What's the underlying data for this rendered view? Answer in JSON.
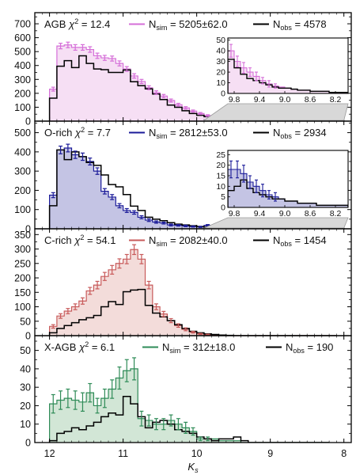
{
  "xlabel": "K",
  "xlabel_sub": "s",
  "x_ticks": [
    12,
    11,
    10,
    9,
    8
  ],
  "x_lim": [
    12.2,
    7.9
  ],
  "chart_data": [
    {
      "type": "histogram",
      "panel": "AGB",
      "label": "AGB",
      "chi2": "12.4",
      "sim_label": "5205±62.0",
      "obs_label": "4578",
      "color": "#d56ed8",
      "fill": "#f6dff4",
      "ylim": [
        0,
        780
      ],
      "yticks": [
        0,
        100,
        200,
        300,
        400,
        500,
        600,
        700
      ],
      "bin_edges": [
        12.0,
        11.9,
        11.8,
        11.7,
        11.6,
        11.5,
        11.4,
        11.3,
        11.2,
        11.1,
        11.0,
        10.9,
        10.8,
        10.7,
        10.6,
        10.5,
        10.4,
        10.3,
        10.2,
        10.1,
        10.0,
        9.9,
        9.8,
        9.7,
        9.6,
        9.5,
        9.4,
        9.3,
        9.2,
        9.1,
        9.0,
        8.9,
        8.8,
        8.7,
        8.6,
        8.5,
        8.4,
        8.3,
        8.2,
        8.1,
        8.0
      ],
      "sim": [
        230,
        540,
        548,
        530,
        530,
        515,
        470,
        455,
        450,
        415,
        375,
        325,
        285,
        240,
        205,
        180,
        148,
        118,
        95,
        72,
        55,
        40,
        30,
        24,
        20,
        16,
        12,
        9,
        7,
        6,
        5,
        4,
        3,
        3,
        2,
        2,
        2,
        1,
        1,
        1
      ],
      "sim_err": [
        14,
        20,
        20,
        20,
        20,
        20,
        19,
        18,
        18,
        18,
        17,
        16,
        15,
        14,
        13,
        12,
        11,
        10,
        9,
        8,
        7,
        6,
        5,
        5,
        4,
        4,
        3,
        3,
        2,
        2,
        2,
        2,
        1,
        1,
        1,
        1,
        1,
        1,
        1,
        1
      ],
      "obs": [
        165,
        395,
        435,
        385,
        470,
        415,
        375,
        370,
        350,
        350,
        368,
        283,
        255,
        232,
        195,
        155,
        115,
        100,
        75,
        55,
        42,
        32,
        24,
        18,
        14,
        12,
        10,
        8,
        6,
        5,
        5,
        4,
        3,
        3,
        2,
        2,
        2,
        1,
        1,
        1
      ],
      "inset": {
        "ylim": [
          0,
          52
        ],
        "yticks": [
          0,
          10,
          20,
          30,
          40,
          50
        ],
        "xlim": [
          9.9,
          8.0
        ],
        "xticks": [
          9.8,
          9.4,
          9.0,
          8.6,
          8.2
        ],
        "x_ticklabels": [
          "9.8",
          "9.4",
          "9.0",
          "8.6",
          "8.2"
        ]
      }
    },
    {
      "type": "histogram",
      "panel": "O-rich",
      "label": "O-rich",
      "chi2": "7.7",
      "sim_label": "2812±53.0",
      "obs_label": "2934",
      "color": "#1b1b99",
      "fill": "#c4c4e4",
      "ylim": [
        0,
        560
      ],
      "yticks": [
        0,
        100,
        200,
        300,
        400,
        500
      ],
      "bin_edges": [
        12.0,
        11.9,
        11.8,
        11.7,
        11.6,
        11.5,
        11.4,
        11.3,
        11.2,
        11.1,
        11.0,
        10.9,
        10.8,
        10.7,
        10.6,
        10.5,
        10.4,
        10.3,
        10.2,
        10.1,
        10.0,
        9.9,
        9.8,
        9.7,
        9.6,
        9.5,
        9.4,
        9.3,
        9.2,
        9.1,
        9.0,
        8.9,
        8.8,
        8.7,
        8.6,
        8.5,
        8.4,
        8.3,
        8.2,
        8.1,
        8.0
      ],
      "sim": [
        175,
        410,
        420,
        385,
        375,
        350,
        300,
        195,
        165,
        120,
        95,
        85,
        60,
        45,
        35,
        30,
        20,
        18,
        15,
        12,
        10,
        18,
        18,
        16,
        12,
        10,
        8,
        6,
        5,
        4,
        3,
        3,
        2,
        2,
        2,
        1,
        1,
        1,
        1,
        1
      ],
      "sim_err": [
        13,
        20,
        20,
        19,
        19,
        18,
        17,
        14,
        13,
        11,
        10,
        9,
        8,
        7,
        6,
        5,
        5,
        4,
        4,
        3,
        3,
        4,
        4,
        4,
        3,
        3,
        3,
        2,
        2,
        2,
        2,
        2,
        1,
        1,
        1,
        1,
        1,
        1,
        1,
        1
      ],
      "obs": [
        120,
        410,
        360,
        400,
        375,
        345,
        330,
        280,
        230,
        218,
        178,
        118,
        95,
        60,
        50,
        42,
        32,
        24,
        20,
        16,
        12,
        8,
        10,
        13,
        9,
        7,
        6,
        5,
        4,
        4,
        3,
        3,
        2,
        2,
        2,
        1,
        1,
        1,
        1,
        1
      ],
      "inset": {
        "ylim": [
          0,
          27
        ],
        "yticks": [
          0,
          5,
          10,
          15,
          20,
          25
        ],
        "xlim": [
          9.9,
          8.0
        ],
        "xticks": [
          9.8,
          9.4,
          9.0,
          8.6,
          8.2
        ],
        "x_ticklabels": [
          "9.8",
          "9.4",
          "9.0",
          "8.6",
          "8.2"
        ]
      }
    },
    {
      "type": "histogram",
      "panel": "C-rich",
      "label": "C-rich",
      "chi2": "54.1",
      "sim_label": "2082±40.0",
      "obs_label": "1454",
      "color": "#c85a5a",
      "fill": "#f3dcda",
      "ylim": [
        0,
        370
      ],
      "yticks": [
        0,
        50,
        100,
        150,
        200,
        250,
        300,
        350
      ],
      "bin_edges": [
        12.0,
        11.9,
        11.8,
        11.7,
        11.6,
        11.5,
        11.4,
        11.3,
        11.2,
        11.1,
        11.0,
        10.9,
        10.8,
        10.7,
        10.6,
        10.5,
        10.4,
        10.3,
        10.2,
        10.1,
        10.0,
        9.9,
        9.8,
        9.7,
        9.6,
        9.5,
        9.4,
        9.3,
        9.2,
        9.1,
        9.0,
        8.9,
        8.8,
        8.7,
        8.6,
        8.5,
        8.4,
        8.3,
        8.2,
        8.1
      ],
      "sim": [
        32,
        68,
        85,
        100,
        120,
        155,
        175,
        205,
        228,
        250,
        265,
        298,
        265,
        175,
        100,
        75,
        52,
        35,
        22,
        12,
        6,
        3,
        2,
        1,
        0,
        0,
        0,
        0,
        0,
        0,
        0,
        0,
        0,
        0,
        0,
        0,
        0,
        0,
        0
      ],
      "sim_err": [
        6,
        8,
        9,
        10,
        11,
        12,
        13,
        14,
        15,
        16,
        16,
        17,
        16,
        13,
        10,
        9,
        7,
        6,
        5,
        3,
        2,
        2,
        1,
        1,
        0,
        0,
        0,
        0,
        0,
        0,
        0,
        0,
        0,
        0,
        0,
        0,
        0,
        0,
        0
      ],
      "obs": [
        10,
        25,
        35,
        45,
        55,
        62,
        70,
        100,
        118,
        108,
        152,
        158,
        160,
        105,
        78,
        65,
        52,
        38,
        25,
        15,
        10,
        6,
        4,
        2,
        1,
        0,
        0,
        0,
        0,
        0,
        0,
        0,
        0,
        0,
        0,
        0,
        0,
        0,
        0
      ]
    },
    {
      "type": "histogram",
      "panel": "X-AGB",
      "label": "X-AGB",
      "chi2": "6.1",
      "sim_label": "312±18.0",
      "obs_label": "190",
      "color": "#2e8b57",
      "fill": "#d2e6d6",
      "ylim": [
        0,
        58
      ],
      "yticks": [
        0,
        10,
        20,
        30,
        40,
        50
      ],
      "bin_edges": [
        12.0,
        11.9,
        11.8,
        11.7,
        11.6,
        11.5,
        11.4,
        11.3,
        11.2,
        11.1,
        11.0,
        10.9,
        10.8,
        10.7,
        10.6,
        10.5,
        10.4,
        10.3,
        10.2,
        10.1,
        10.0,
        9.9,
        9.8,
        9.7,
        9.6,
        9.5,
        9.4,
        9.3,
        9.2,
        9.1,
        9.0,
        8.9,
        8.8,
        8.7,
        8.6,
        8.5,
        8.4,
        8.3,
        8.2
      ],
      "sim": [
        21,
        23,
        24,
        23,
        22,
        27,
        20,
        24,
        29,
        35,
        39,
        40,
        13,
        12,
        10,
        10,
        12,
        10,
        8,
        6,
        2,
        2,
        2,
        1,
        1,
        1,
        0,
        0,
        0,
        0,
        0,
        0,
        0,
        0,
        0,
        0,
        0,
        0
      ],
      "sim_err": [
        5,
        5,
        5,
        5,
        5,
        5,
        4,
        5,
        5,
        6,
        6,
        6,
        4,
        3,
        3,
        3,
        3,
        3,
        3,
        2,
        1,
        1,
        1,
        1,
        1,
        1,
        0,
        0,
        0,
        0,
        0,
        0,
        0,
        0,
        0,
        0,
        0,
        0
      ],
      "obs": [
        1,
        5,
        6,
        8,
        7,
        9,
        11,
        14,
        16,
        15,
        25,
        21,
        14,
        8,
        11,
        12,
        10,
        7,
        6,
        5,
        3,
        2,
        1,
        2,
        2,
        3,
        1,
        0,
        0,
        0,
        0,
        0,
        0,
        0,
        0,
        0,
        0,
        0
      ]
    }
  ]
}
